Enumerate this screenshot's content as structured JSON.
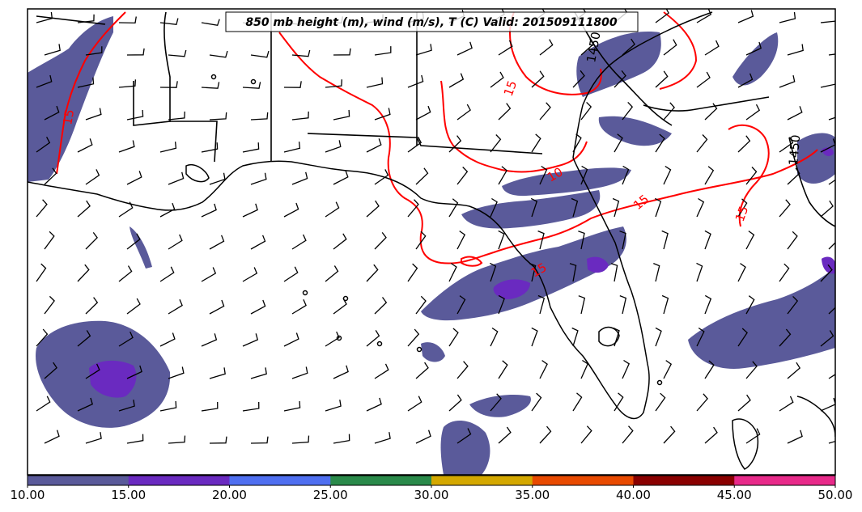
{
  "title": "850 mb height (m), wind (m/s), T (C) Valid: 201509111800",
  "colorbar": {
    "ticks": [
      "10.00",
      "15.00",
      "20.00",
      "25.00",
      "30.00",
      "35.00",
      "40.00",
      "45.00",
      "50.00"
    ],
    "bin_colors": [
      "#5a5a9a",
      "#6a2ac0",
      "#4f6ff0",
      "#2a8a4a",
      "#d4a800",
      "#e84a00",
      "#8a0000",
      "#e82a8a"
    ]
  },
  "contour_labels": {
    "height": [
      "1450",
      "1450"
    ],
    "temperature": [
      "15",
      "15",
      "10",
      "15",
      "15",
      "15"
    ]
  },
  "colors": {
    "shading_base": "#5a5a9a",
    "shading_core": "#6a2ac0",
    "temperature_contour": "#ff0000",
    "height_contour": "#000000",
    "coastline": "#000000"
  }
}
